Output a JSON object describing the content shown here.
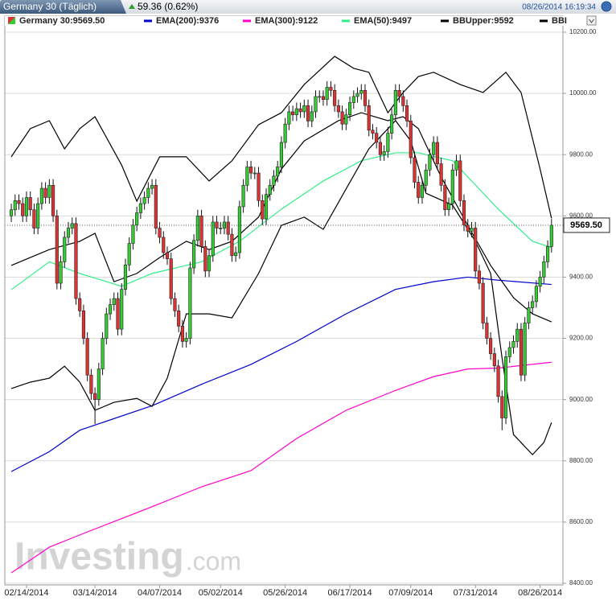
{
  "header": {
    "tab": "Germany 30 (Täglich)",
    "change": "59.36 (0.62%)",
    "timestamp": "08/26/2014 16:19:34"
  },
  "chart_data": {
    "type": "candlestick",
    "name": "Germany 30:9569.50",
    "up_color": "#33cc33",
    "down_color": "#dd3333",
    "open": [
      9600,
      9620,
      9650,
      9640,
      9600,
      9660,
      9620,
      9560,
      9640,
      9690,
      9660,
      9700,
      9600,
      9380,
      9450,
      9530,
      9560,
      9575,
      9330,
      9290,
      9200,
      9080,
      9020,
      9000,
      9100,
      9200,
      9280,
      9310,
      9330,
      9230,
      9360,
      9440,
      9510,
      9570,
      9610,
      9640,
      9660,
      9690,
      9700,
      9560,
      9530,
      9480,
      9460,
      9330,
      9290,
      9240,
      9190,
      9200,
      9430,
      9520,
      9600,
      9500,
      9420,
      9470,
      9580,
      9560,
      9560,
      9580,
      9540,
      9470,
      9480,
      9630,
      9700,
      9760,
      9740,
      9740,
      9650,
      9590,
      9670,
      9700,
      9730,
      9760,
      9840,
      9900,
      9940,
      9930,
      9950,
      9940,
      9960,
      9910,
      9940,
      9990,
      9990,
      9980,
      10020,
      10010,
      9960,
      9940,
      9900,
      9930,
      9970,
      9990,
      10000,
      10010,
      9960,
      9880,
      9870,
      9840,
      9800,
      9810,
      9870,
      9930,
      10010,
      9990,
      9960,
      9910,
      9790,
      9710,
      9660,
      9700,
      9750,
      9800,
      9840,
      9770,
      9700,
      9620,
      9640,
      9750,
      9780,
      9650,
      9570,
      9550,
      9560,
      9420,
      9380,
      9250,
      9200,
      9150,
      9110,
      9010,
      8940,
      9140,
      9170,
      9190,
      9230,
      9080,
      9250,
      9300,
      9320,
      9370,
      9400,
      9450,
      9500
    ],
    "high": [
      9640,
      9670,
      9670,
      9660,
      9680,
      9680,
      9640,
      9660,
      9710,
      9710,
      9720,
      9720,
      9620,
      9470,
      9550,
      9580,
      9595,
      9595,
      9350,
      9310,
      9220,
      9100,
      9040,
      9120,
      9220,
      9300,
      9330,
      9350,
      9350,
      9380,
      9460,
      9530,
      9590,
      9630,
      9660,
      9680,
      9710,
      9720,
      9720,
      9580,
      9550,
      9500,
      9480,
      9350,
      9310,
      9260,
      9220,
      9450,
      9540,
      9620,
      9620,
      9520,
      9490,
      9600,
      9600,
      9580,
      9600,
      9600,
      9560,
      9500,
      9650,
      9720,
      9780,
      9780,
      9760,
      9760,
      9670,
      9690,
      9720,
      9750,
      9780,
      9860,
      9920,
      9960,
      9960,
      9970,
      9970,
      9980,
      9980,
      9960,
      10010,
      10010,
      10010,
      10040,
      10040,
      10030,
      9980,
      9960,
      9950,
      9990,
      10010,
      10020,
      10030,
      10030,
      9980,
      9900,
      9890,
      9860,
      9830,
      9890,
      9950,
      10030,
      10030,
      10010,
      9980,
      9930,
      9810,
      9730,
      9720,
      9770,
      9820,
      9860,
      9860,
      9790,
      9720,
      9660,
      9770,
      9800,
      9800,
      9670,
      9590,
      9580,
      9580,
      9440,
      9400,
      9270,
      9220,
      9170,
      9130,
      9030,
      9160,
      9190,
      9210,
      9250,
      9250,
      9270,
      9320,
      9340,
      9390,
      9420,
      9470,
      9520,
      9590
    ],
    "low": [
      9580,
      9600,
      9620,
      9580,
      9580,
      9600,
      9540,
      9540,
      9620,
      9640,
      9640,
      9580,
      9360,
      9360,
      9430,
      9510,
      9540,
      9310,
      9270,
      9180,
      9060,
      9000,
      8920,
      8980,
      9080,
      9180,
      9260,
      9290,
      9210,
      9210,
      9340,
      9420,
      9490,
      9550,
      9590,
      9620,
      9640,
      9670,
      9540,
      9510,
      9460,
      9440,
      9310,
      9270,
      9220,
      9170,
      9170,
      9180,
      9410,
      9500,
      9480,
      9400,
      9400,
      9450,
      9540,
      9540,
      9540,
      9520,
      9450,
      9450,
      9460,
      9610,
      9680,
      9720,
      9720,
      9630,
      9570,
      9570,
      9650,
      9680,
      9710,
      9740,
      9820,
      9880,
      9910,
      9910,
      9920,
      9920,
      9890,
      9890,
      9920,
      9970,
      9960,
      9960,
      9990,
      9940,
      9920,
      9880,
      9880,
      9910,
      9950,
      9970,
      9980,
      9940,
      9860,
      9850,
      9820,
      9780,
      9780,
      9790,
      9850,
      9910,
      9970,
      9940,
      9890,
      9770,
      9690,
      9640,
      9640,
      9680,
      9730,
      9780,
      9750,
      9680,
      9600,
      9600,
      9620,
      9730,
      9630,
      9550,
      9530,
      9530,
      9400,
      9360,
      9230,
      9180,
      9130,
      9090,
      8990,
      8900,
      8920,
      9120,
      9150,
      9170,
      9060,
      9060,
      9230,
      9280,
      9300,
      9350,
      9380,
      9430,
      9480
    ],
    "close": [
      9620,
      9650,
      9640,
      9600,
      9660,
      9620,
      9560,
      9640,
      9690,
      9660,
      9700,
      9600,
      9380,
      9450,
      9530,
      9560,
      9575,
      9330,
      9290,
      9200,
      9080,
      9020,
      9000,
      9100,
      9200,
      9280,
      9310,
      9330,
      9230,
      9360,
      9440,
      9510,
      9570,
      9610,
      9640,
      9660,
      9690,
      9700,
      9560,
      9530,
      9480,
      9460,
      9330,
      9290,
      9240,
      9190,
      9200,
      9430,
      9520,
      9600,
      9500,
      9420,
      9470,
      9580,
      9560,
      9560,
      9580,
      9540,
      9470,
      9480,
      9630,
      9700,
      9760,
      9740,
      9740,
      9650,
      9590,
      9670,
      9700,
      9730,
      9760,
      9840,
      9900,
      9940,
      9930,
      9950,
      9940,
      9960,
      9910,
      9940,
      9990,
      9990,
      9980,
      10020,
      10010,
      9960,
      9940,
      9900,
      9930,
      9970,
      9990,
      10000,
      10010,
      9960,
      9880,
      9870,
      9840,
      9800,
      9810,
      9870,
      9930,
      10010,
      9990,
      9960,
      9910,
      9790,
      9710,
      9660,
      9700,
      9750,
      9800,
      9840,
      9770,
      9700,
      9620,
      9640,
      9750,
      9780,
      9650,
      9570,
      9550,
      9560,
      9420,
      9380,
      9250,
      9200,
      9150,
      9110,
      9010,
      8940,
      9140,
      9170,
      9190,
      9230,
      9080,
      9250,
      9300,
      9320,
      9370,
      9400,
      9450,
      9500,
      9569.5
    ],
    "lines": [
      {
        "name": "EMA(200):9376",
        "color": "#0000cc",
        "x": [
          0,
          10,
          18,
          37,
          50,
          63,
          75,
          88,
          101,
          111,
          120,
          128,
          142
        ],
        "values": [
          8765,
          8830,
          8900,
          8980,
          9050,
          9115,
          9190,
          9280,
          9360,
          9385,
          9400,
          9390,
          9376
        ]
      },
      {
        "name": "EMA(300):9122",
        "color": "#ff00cc",
        "x": [
          0,
          10,
          18,
          37,
          50,
          63,
          75,
          88,
          101,
          111,
          120,
          128,
          142
        ],
        "values": [
          8434,
          8518,
          8558,
          8650,
          8715,
          8768,
          8873,
          8965,
          9030,
          9075,
          9100,
          9103,
          9122
        ]
      },
      {
        "name": "EMA(50):9497",
        "color": "#33ee88",
        "x": [
          0,
          10,
          18,
          29,
          37,
          50,
          60,
          71,
          82,
          92,
          101,
          107,
          116,
          122,
          128,
          137,
          142
        ],
        "values": [
          9359,
          9450,
          9412,
          9370,
          9412,
          9450,
          9517,
          9622,
          9714,
          9780,
          9806,
          9806,
          9780,
          9701,
          9622,
          9517,
          9497
        ]
      },
      {
        "name": "BBUpper:9592",
        "color": "#000000",
        "x": [
          0,
          5,
          10,
          14,
          18,
          22,
          29,
          33,
          39,
          46,
          52,
          58,
          65,
          71,
          77,
          85,
          90,
          94,
          99,
          103,
          107,
          111,
          118,
          124,
          130,
          134,
          139,
          142
        ],
        "values": [
          9793,
          9885,
          9911,
          9819,
          9885,
          9924,
          9766,
          9648,
          9793,
          9793,
          9714,
          9780,
          9898,
          9937,
          10029,
          10121,
          10082,
          10069,
          9937,
          10003,
          10055,
          10069,
          10029,
          10003,
          10069,
          10003,
          9753,
          9592
        ]
      },
      {
        "name": "BBI",
        "color": "#000000",
        "x": [
          0,
          5,
          10,
          14,
          18,
          22,
          27,
          33,
          37,
          41,
          46,
          52,
          58,
          65,
          71,
          77,
          82,
          88,
          94,
          101,
          105,
          109,
          116,
          122,
          126,
          129,
          132,
          137,
          140,
          142
        ],
        "values": [
          9036,
          9057,
          9070,
          9109,
          9057,
          8965,
          8991,
          9004,
          8978,
          9070,
          9280,
          9280,
          9267,
          9412,
          9569,
          9596,
          9556,
          9688,
          9819,
          9911,
          9845,
          9674,
          9635,
          9517,
          9412,
          9136,
          8886,
          8820,
          8860,
          8925
        ]
      },
      {
        "color": "#000000",
        "x": [
          0,
          10,
          18,
          22,
          27,
          33,
          39,
          46,
          52,
          58,
          65,
          71,
          77,
          86,
          92,
          99,
          103,
          107,
          113,
          120,
          126,
          132,
          137,
          142
        ],
        "values": [
          9438,
          9490,
          9517,
          9543,
          9385,
          9412,
          9464,
          9517,
          9490,
          9517,
          9596,
          9753,
          9845,
          9911,
          9937,
          9911,
          9924,
          9885,
          9727,
          9569,
          9438,
          9333,
          9280,
          9254
        ]
      }
    ],
    "xlim": [
      -1.7,
      145
    ],
    "xticks": [
      {
        "value": 4,
        "label": "02/14/2014"
      },
      {
        "value": 22,
        "label": "03/14/2014"
      },
      {
        "value": 39,
        "label": "04/07/2014"
      },
      {
        "value": 55,
        "label": "05/02/2014"
      },
      {
        "value": 72,
        "label": "05/26/2014"
      },
      {
        "value": 89,
        "label": "06/17/2014"
      },
      {
        "value": 105,
        "label": "07/09/2014"
      },
      {
        "value": 122,
        "label": "07/31/2014"
      },
      {
        "value": 139,
        "label": "08/26/2014"
      }
    ],
    "ylim": [
      8400,
      10200
    ],
    "yticks": [
      {
        "value": 8400,
        "label": "8400.00"
      },
      {
        "value": 8600,
        "label": "8600.00"
      },
      {
        "value": 8800,
        "label": "8800.00"
      },
      {
        "value": 9000,
        "label": "9000.00"
      },
      {
        "value": 9200,
        "label": "9200.00"
      },
      {
        "value": 9400,
        "label": "9400.00"
      },
      {
        "value": 9600,
        "label": "9600.00"
      },
      {
        "value": 9800,
        "label": "9800.00"
      },
      {
        "value": 10000,
        "label": "10000.00"
      },
      {
        "value": 10200,
        "label": "10200.00"
      }
    ],
    "grid": true,
    "last_price": {
      "value": 9569.5,
      "label": "9569.50"
    },
    "watermark": {
      "brand": "Investing",
      "suffix": ".com"
    }
  }
}
